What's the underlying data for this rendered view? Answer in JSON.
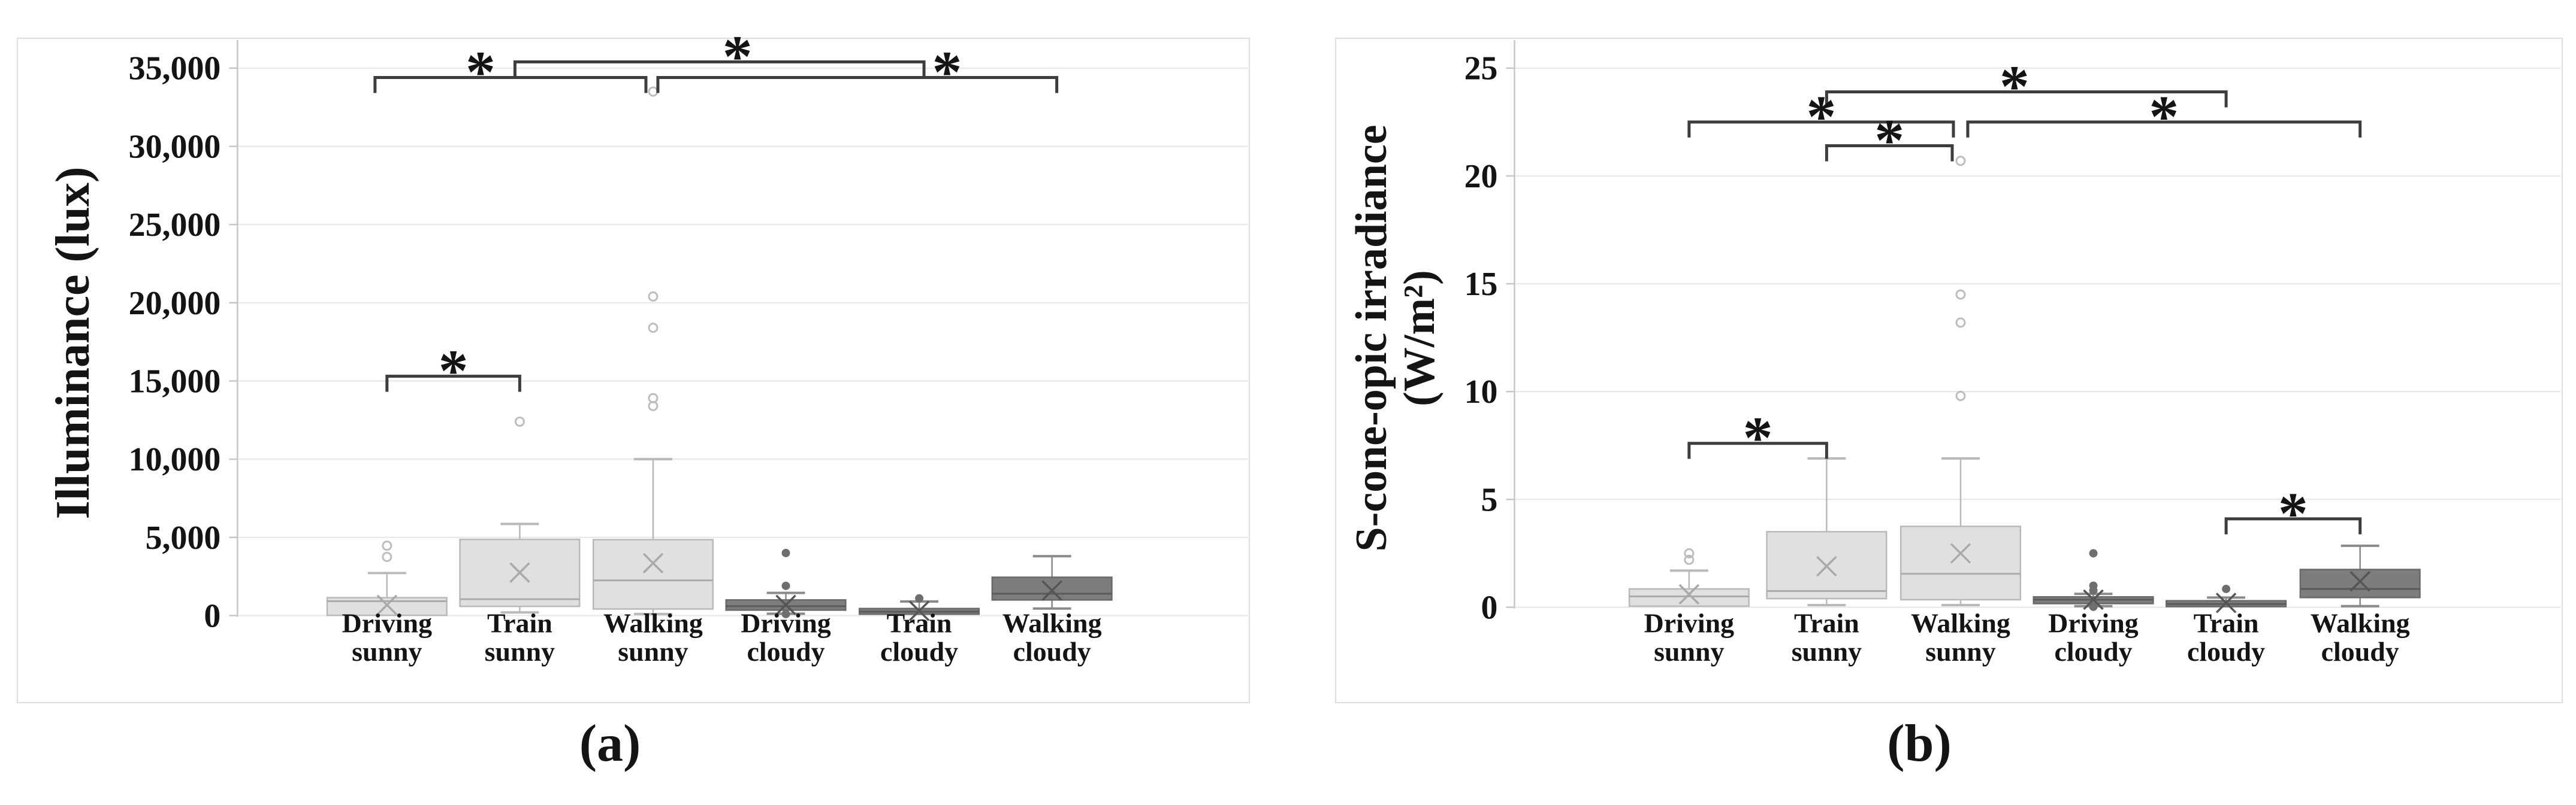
{
  "figure": {
    "caption_a": "(a)",
    "caption_b": "(b)"
  },
  "colors": {
    "background": "#ffffff",
    "panel_border": "#dedede",
    "gridline": "#eaeaea",
    "axis": "#c6c6c6",
    "text": "#141414",
    "bracket": "#3d3d3d",
    "sunny_fill": "#e0e0e0",
    "sunny_stroke": "#b9b9b9",
    "sunny_median": "#ababab",
    "sunny_whisker": "#b9b9b9",
    "sunny_mean": "#a9a9a9",
    "sunny_outlier": "#bdbdbd",
    "cloudy_fill": "#7d7d7d",
    "cloudy_stroke": "#696969",
    "cloudy_median": "#5a5a5a",
    "cloudy_whisker": "#8a8a8a",
    "cloudy_mean": "#555555",
    "cloudy_outlier": "#6e6e6e"
  },
  "chart_data": [
    {
      "id": "a",
      "type": "boxplot",
      "caption": "(a)",
      "y_axis_title_lines": [
        "Illuminance (lux)"
      ],
      "ylabel": "Illuminance (lux)",
      "ylim": [
        0,
        35000
      ],
      "grid": true,
      "y_ticks": [
        {
          "value": 35000,
          "label": "35,000"
        },
        {
          "value": 30000,
          "label": "30,000"
        },
        {
          "value": 25000,
          "label": "25,000"
        },
        {
          "value": 20000,
          "label": "20,000"
        },
        {
          "value": 15000,
          "label": "15,000"
        },
        {
          "value": 10000,
          "label": "10,000"
        },
        {
          "value": 5000,
          "label": "5,000"
        },
        {
          "value": 0,
          "label": "0"
        }
      ],
      "categories": [
        {
          "lines": [
            "Driving",
            "sunny"
          ],
          "group": "sunny"
        },
        {
          "lines": [
            "Train",
            "sunny"
          ],
          "group": "sunny"
        },
        {
          "lines": [
            "Walking",
            "sunny"
          ],
          "group": "sunny"
        },
        {
          "lines": [
            "Driving",
            "cloudy"
          ],
          "group": "cloudy"
        },
        {
          "lines": [
            "Train",
            "cloudy"
          ],
          "group": "cloudy"
        },
        {
          "lines": [
            "Walking",
            "cloudy"
          ],
          "group": "cloudy"
        }
      ],
      "boxes": [
        {
          "q1": 20,
          "median": 920,
          "q3": 1145,
          "mean": 680,
          "whisker_low": 20,
          "whisker_high": 2720,
          "outliers": [
            3750,
            4470
          ]
        },
        {
          "q1": 590,
          "median": 1050,
          "q3": 4870,
          "mean": 2750,
          "whisker_low": 200,
          "whisker_high": 5860,
          "outliers": [
            12400
          ]
        },
        {
          "q1": 420,
          "median": 2250,
          "q3": 4850,
          "mean": 3350,
          "whisker_low": 100,
          "whisker_high": 10000,
          "outliers": [
            13400,
            13900,
            18400,
            20400,
            33500
          ]
        },
        {
          "q1": 350,
          "median": 600,
          "q3": 1000,
          "mean": 680,
          "whisker_low": 120,
          "whisker_high": 1450,
          "outliers": [
            4000,
            1900,
            100
          ]
        },
        {
          "q1": 90,
          "median": 250,
          "q3": 450,
          "mean": 300,
          "whisker_low": 30,
          "whisker_high": 900,
          "outliers": [
            1100
          ]
        },
        {
          "q1": 1000,
          "median": 1400,
          "q3": 2450,
          "mean": 1600,
          "whisker_low": 450,
          "whisker_high": 3800,
          "outliers": []
        }
      ],
      "brackets": [
        {
          "from": 0,
          "to": 2,
          "level": 34400,
          "label": "*",
          "dx_from": -20,
          "dx_to": -12,
          "label_dx": -50
        },
        {
          "from": 1,
          "to": 4,
          "level": 35400,
          "label": "*",
          "dx_from": -8,
          "dx_to": 8,
          "label_dx": 30
        },
        {
          "from": 2,
          "to": 5,
          "level": 34400,
          "label": "*",
          "dx_from": 8,
          "dx_to": 8,
          "label_dx": 150
        },
        {
          "from": 0,
          "to": 1,
          "level": 15300,
          "label": "*",
          "dx_from": 0,
          "dx_to": 0,
          "label_dx": 0
        }
      ]
    },
    {
      "id": "b",
      "type": "boxplot",
      "caption": "(b)",
      "y_axis_title_lines": [
        "S-cone-opic irradiance",
        "(W/m²)"
      ],
      "ylabel": "S-cone-opic irradiance (W/m²)",
      "ylim": [
        0,
        25
      ],
      "grid": true,
      "y_ticks": [
        {
          "value": 25,
          "label": "25"
        },
        {
          "value": 20,
          "label": "20"
        },
        {
          "value": 15,
          "label": "15"
        },
        {
          "value": 10,
          "label": "10"
        },
        {
          "value": 5,
          "label": "5"
        },
        {
          "value": 0,
          "label": "0"
        }
      ],
      "categories": [
        {
          "lines": [
            "Driving",
            "sunny"
          ],
          "group": "sunny"
        },
        {
          "lines": [
            "Train",
            "sunny"
          ],
          "group": "sunny"
        },
        {
          "lines": [
            "Walking",
            "sunny"
          ],
          "group": "sunny"
        },
        {
          "lines": [
            "Driving",
            "cloudy"
          ],
          "group": "cloudy"
        },
        {
          "lines": [
            "Train",
            "cloudy"
          ],
          "group": "cloudy"
        },
        {
          "lines": [
            "Walking",
            "cloudy"
          ],
          "group": "cloudy"
        }
      ],
      "boxes": [
        {
          "q1": 0.05,
          "median": 0.5,
          "q3": 0.85,
          "mean": 0.6,
          "whisker_low": 0.02,
          "whisker_high": 1.7,
          "outliers": [
            2.2,
            2.5
          ]
        },
        {
          "q1": 0.4,
          "median": 0.75,
          "q3": 3.5,
          "mean": 1.9,
          "whisker_low": 0.1,
          "whisker_high": 6.9,
          "outliers": []
        },
        {
          "q1": 0.35,
          "median": 1.55,
          "q3": 3.75,
          "mean": 2.5,
          "whisker_low": 0.1,
          "whisker_high": 6.9,
          "outliers": [
            9.8,
            13.2,
            14.5,
            20.7
          ]
        },
        {
          "q1": 0.17,
          "median": 0.35,
          "q3": 0.48,
          "mean": 0.35,
          "whisker_low": 0.05,
          "whisker_high": 0.62,
          "outliers": [
            0.78,
            1.0,
            2.5,
            0.02
          ]
        },
        {
          "q1": 0.03,
          "median": 0.15,
          "q3": 0.3,
          "mean": 0.2,
          "whisker_low": 0,
          "whisker_high": 0.45,
          "outliers": [
            0.85
          ]
        },
        {
          "q1": 0.45,
          "median": 0.85,
          "q3": 1.75,
          "mean": 1.2,
          "whisker_low": 0.05,
          "whisker_high": 2.85,
          "outliers": []
        }
      ],
      "brackets": [
        {
          "from": 1,
          "to": 4,
          "level": 23.9,
          "label": "*",
          "dx_from": 0,
          "dx_to": 0,
          "label_dx": -20
        },
        {
          "from": 0,
          "to": 2,
          "level": 22.5,
          "label": "*",
          "dx_from": 0,
          "dx_to": -12,
          "label_dx": 0
        },
        {
          "from": 2,
          "to": 5,
          "level": 22.5,
          "label": "*",
          "dx_from": 12,
          "dx_to": 0,
          "label_dx": 0
        },
        {
          "from": 1,
          "to": 2,
          "level": 21.4,
          "label": "*",
          "dx_from": 0,
          "dx_to": -14,
          "label_dx": 0
        },
        {
          "from": 0,
          "to": 1,
          "level": 7.6,
          "label": "*",
          "dx_from": 0,
          "dx_to": 0,
          "label_dx": 0
        },
        {
          "from": 4,
          "to": 5,
          "level": 4.1,
          "label": "*",
          "dx_from": 0,
          "dx_to": 0,
          "label_dx": 0
        }
      ]
    }
  ]
}
